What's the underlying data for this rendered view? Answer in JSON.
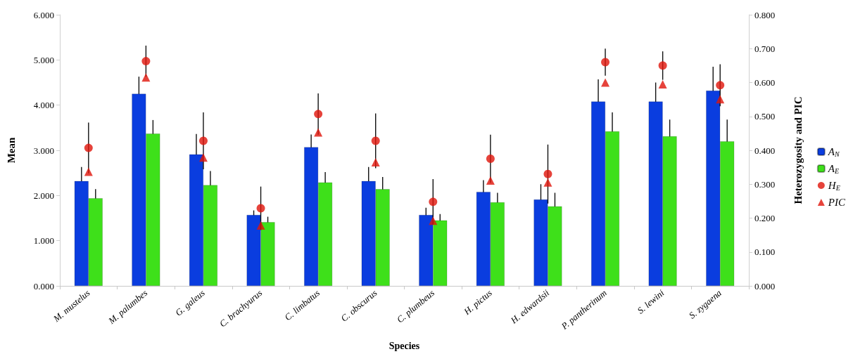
{
  "chart_data": {
    "type": "bar",
    "xlabel": "Species",
    "ylabel": "Mean",
    "y2label": "Heterozygosity and PIC",
    "categories": [
      "M. mustelus",
      "M. palumbes",
      "G. galeus",
      "C. brachyurus",
      "C. limbatus",
      "C. obscurus",
      "C. plumbeus",
      "H. pictus",
      "H. edwardsii",
      "P. pantherinum",
      "S. lewini",
      "S. zygaena"
    ],
    "series": [
      {
        "name": "A$_{N}$",
        "color": "#0a3ddf",
        "values": [
          2.32,
          4.25,
          2.91,
          1.57,
          3.07,
          2.32,
          1.57,
          2.08,
          1.91,
          4.08,
          4.08,
          4.32
        ],
        "errors": [
          0.31,
          0.38,
          0.45,
          0.1,
          0.28,
          0.31,
          0.16,
          0.26,
          0.34,
          0.49,
          0.42,
          0.53
        ]
      },
      {
        "name": "A$_{E}$",
        "color": "#3ee01a",
        "values": [
          1.94,
          3.37,
          2.23,
          1.41,
          2.29,
          2.14,
          1.45,
          1.85,
          1.76,
          3.42,
          3.31,
          3.2
        ],
        "errors": [
          0.2,
          0.3,
          0.31,
          0.12,
          0.23,
          0.27,
          0.14,
          0.21,
          0.3,
          0.42,
          0.37,
          0.48
        ]
      },
      {
        "name": "H$_{E}$",
        "type": "scatter",
        "axis": "y2",
        "marker": "circle",
        "color": "#e0140a",
        "values": [
          0.407,
          0.663,
          0.428,
          0.229,
          0.507,
          0.428,
          0.248,
          0.375,
          0.33,
          0.66,
          0.65,
          0.592
        ],
        "errors": [
          0.075,
          0.046,
          0.084,
          0.064,
          0.061,
          0.081,
          0.067,
          0.071,
          0.087,
          0.04,
          0.042,
          0.062
        ]
      },
      {
        "name": "PIC",
        "type": "scatter",
        "axis": "y2",
        "marker": "triangle",
        "color": "#e0140a",
        "values": [
          0.337,
          0.615,
          0.379,
          0.178,
          0.453,
          0.365,
          0.192,
          0.311,
          0.305,
          0.6,
          0.595,
          0.551
        ]
      }
    ],
    "ylim": [
      0,
      6
    ],
    "yticks": [
      {
        "value": 0,
        "label": "0.000"
      },
      {
        "value": 1,
        "label": "1.000"
      },
      {
        "value": 2,
        "label": "2.000"
      },
      {
        "value": 3,
        "label": "3.000"
      },
      {
        "value": 4,
        "label": "4.000"
      },
      {
        "value": 5,
        "label": "5.000"
      },
      {
        "value": 6,
        "label": "6.000"
      }
    ],
    "y2lim": [
      0,
      0.8
    ],
    "y2ticks": [
      {
        "value": 0,
        "label": "0.000"
      },
      {
        "value": 0.1,
        "label": "0.100"
      },
      {
        "value": 0.2,
        "label": "0.200"
      },
      {
        "value": 0.3,
        "label": "0.300"
      },
      {
        "value": 0.4,
        "label": "0.400"
      },
      {
        "value": 0.5,
        "label": "0.500"
      },
      {
        "value": 0.6,
        "label": "0.600"
      },
      {
        "value": 0.7,
        "label": "0.700"
      },
      {
        "value": 0.8,
        "label": "0.800"
      }
    ],
    "grid": false,
    "legend": "right"
  }
}
